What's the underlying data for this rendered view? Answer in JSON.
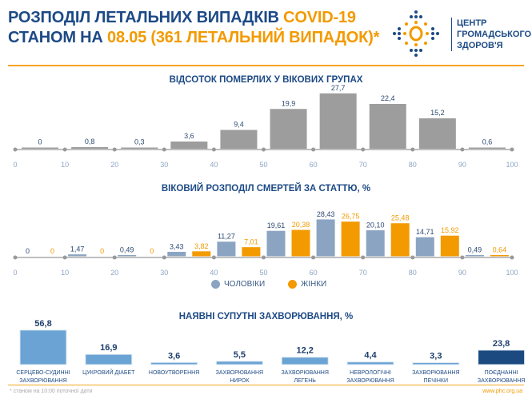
{
  "header": {
    "title_line1_a": "РОЗПОДІЛ ЛЕТАЛЬНИХ ВИПАДКІВ ",
    "title_line1_b": "COVID-19",
    "title_line2_a": "СТАНОМ НА ",
    "title_line2_b": "08.05 (361 ЛЕТАЛЬНИЙ ВИПАДОК)*",
    "logo_text": [
      "ЦЕНТР",
      "ГРОМАДСЬКОГО",
      "ЗДОРОВ'Я"
    ]
  },
  "colors": {
    "navy": "#1d4a85",
    "orange": "#f39a00",
    "gray_bar": "#9d9d9d",
    "men": "#8ba4c2",
    "women": "#f39a00",
    "comorb": "#6aa3d4",
    "comorb_combined": "#1a4a80"
  },
  "chart_data": [
    {
      "type": "bar",
      "title": "ВІДСОТОК ПОМЕРЛИХ У ВІКОВИХ ГРУПАХ",
      "x_ticks": [
        "0",
        "10",
        "20",
        "30",
        "40",
        "50",
        "60",
        "70",
        "80",
        "90",
        "100"
      ],
      "categories": [
        "0-10",
        "10-20",
        "20-30",
        "30-40",
        "40-50",
        "50-60",
        "60-70",
        "70-80",
        "80-90",
        "90-100"
      ],
      "values": [
        0,
        0.8,
        0.3,
        3.6,
        9.4,
        19.9,
        27.7,
        22.4,
        15.2,
        0.6
      ],
      "labels": [
        "0",
        "0,8",
        "0,3",
        "3,6",
        "9,4",
        "19,9",
        "27,7",
        "22,4",
        "15,2",
        "0,6"
      ]
    },
    {
      "type": "bar",
      "title": "ВІКОВИЙ РОЗПОДІЛ СМЕРТЕЙ ЗА СТАТТЮ, %",
      "x_ticks": [
        "0",
        "10",
        "20",
        "30",
        "40",
        "50",
        "60",
        "70",
        "80",
        "90",
        "100"
      ],
      "categories": [
        "0-10",
        "10-20",
        "20-30",
        "30-40",
        "40-50",
        "50-60",
        "60-70",
        "70-80",
        "80-90",
        "90-100"
      ],
      "legend": "bottom",
      "series": [
        {
          "name": "ЧОЛОВІКИ",
          "values": [
            0,
            1.47,
            0.49,
            3.43,
            11.27,
            19.61,
            28.43,
            20.1,
            14.71,
            0.49
          ],
          "labels": [
            "0",
            "1,47",
            "0,49",
            "3,43",
            "11,27",
            "19,61",
            "28,43",
            "20,10",
            "14,71",
            "0,49"
          ]
        },
        {
          "name": "ЖІНКИ",
          "values": [
            0,
            0,
            0,
            3.82,
            7.01,
            20.38,
            26.75,
            25.48,
            15.92,
            0.64
          ],
          "labels": [
            "0",
            "0",
            "0",
            "3,82",
            "7,01",
            "20,38",
            "26,75",
            "25,48",
            "15,92",
            "0,64"
          ]
        }
      ]
    },
    {
      "type": "bar",
      "title": "НАЯВНІ СУПУТНІ ЗАХВОРЮВАННЯ, %",
      "categories": [
        [
          "СЕРЦЕВО-СУДИННІ",
          "ЗАХВОРЮВАННЯ"
        ],
        [
          "ЦУКРОВИЙ ДІАБЕТ"
        ],
        [
          "НОВОУТВОРЕННЯ"
        ],
        [
          "ЗАХВОРЮВАННЯ",
          "НИРОК"
        ],
        [
          "ЗАХВОРЮВАННЯ",
          "ЛЕГЕНЬ"
        ],
        [
          "НЕВРОЛОГІЧНІ",
          "ЗАХВОРЮВАННЯ"
        ],
        [
          "ЗАХВОРЮВАННЯ",
          "ПЕЧІНКИ"
        ],
        [
          "ПОЄДНАННІ",
          "ЗАХВОРЮВАННЯ"
        ]
      ],
      "values": [
        56.8,
        16.9,
        3.6,
        5.5,
        12.2,
        4.4,
        3.3,
        23.8
      ],
      "labels": [
        "56,8",
        "16,9",
        "3,6",
        "5,5",
        "12,2",
        "4,4",
        "3,3",
        "23,8"
      ]
    }
  ],
  "footer": {
    "note": "* станом на 10:00 поточної дати",
    "url": "www.phc.org.ua"
  }
}
